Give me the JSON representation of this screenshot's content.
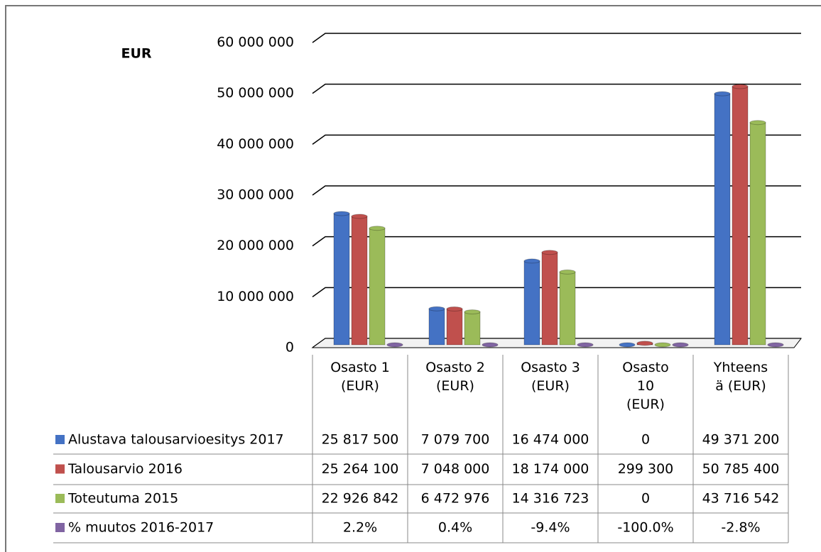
{
  "chart_data": {
    "type": "bar",
    "y_axis_label": "EUR",
    "categories": [
      "Osasto 1 (EUR)",
      "Osasto 2 (EUR)",
      "Osasto 3 (EUR)",
      "Osasto 10 (EUR)",
      "Yhteensä (EUR)"
    ],
    "series": [
      {
        "name": "Alustava talousarvioesitys 2017",
        "color": "#4472c4",
        "values": [
          25817500,
          7079700,
          16474000,
          0,
          49371200
        ],
        "value_labels": [
          "25 817 500",
          "7 079 700",
          "16 474 000",
          "0",
          "49 371 200"
        ]
      },
      {
        "name": "Talousarvio 2016",
        "color": "#c0504d",
        "values": [
          25264100,
          7048000,
          18174000,
          299300,
          50785400
        ],
        "value_labels": [
          "25 264 100",
          "7 048 000",
          "18 174 000",
          "299 300",
          "50 785 400"
        ]
      },
      {
        "name": "Toteutuma 2015",
        "color": "#9bbb59",
        "values": [
          22926842,
          6472976,
          14316723,
          0,
          43716542
        ],
        "value_labels": [
          "22 926 842",
          "6 472 976",
          "14 316 723",
          "0",
          "43 716 542"
        ]
      },
      {
        "name": "% muutos 2016-2017",
        "color": "#8064a2",
        "values": [
          2.2,
          0.4,
          -9.4,
          -100.0,
          -2.8
        ],
        "value_labels": [
          "2.2%",
          "0.4%",
          "-9.4%",
          "-100.0%",
          "-2.8%"
        ]
      }
    ],
    "ylim": [
      0,
      60000000
    ],
    "yticks": [
      0,
      {
        "value": 10000000,
        "label": "10 000 000"
      },
      {
        "value": 20000000,
        "label": "20 000 000"
      },
      {
        "value": 30000000,
        "label": "30 000 000"
      },
      {
        "value": 40000000,
        "label": "40 000 000"
      },
      {
        "value": 50000000,
        "label": "50 000 000"
      },
      {
        "value": 60000000,
        "label": "60 000 000"
      }
    ],
    "grid": true
  }
}
